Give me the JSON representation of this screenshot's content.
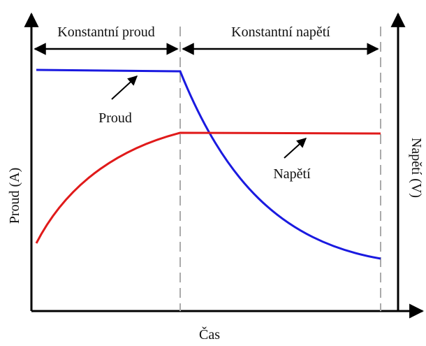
{
  "header": {
    "phase_left": "Konstantní proud",
    "phase_right": "Konstantní napětí"
  },
  "curves": {
    "current": "Proud",
    "voltage": "Napětí"
  },
  "axes": {
    "left": "Proud (A)",
    "right": "Napětí (V)",
    "bottom": "Čas"
  }
}
